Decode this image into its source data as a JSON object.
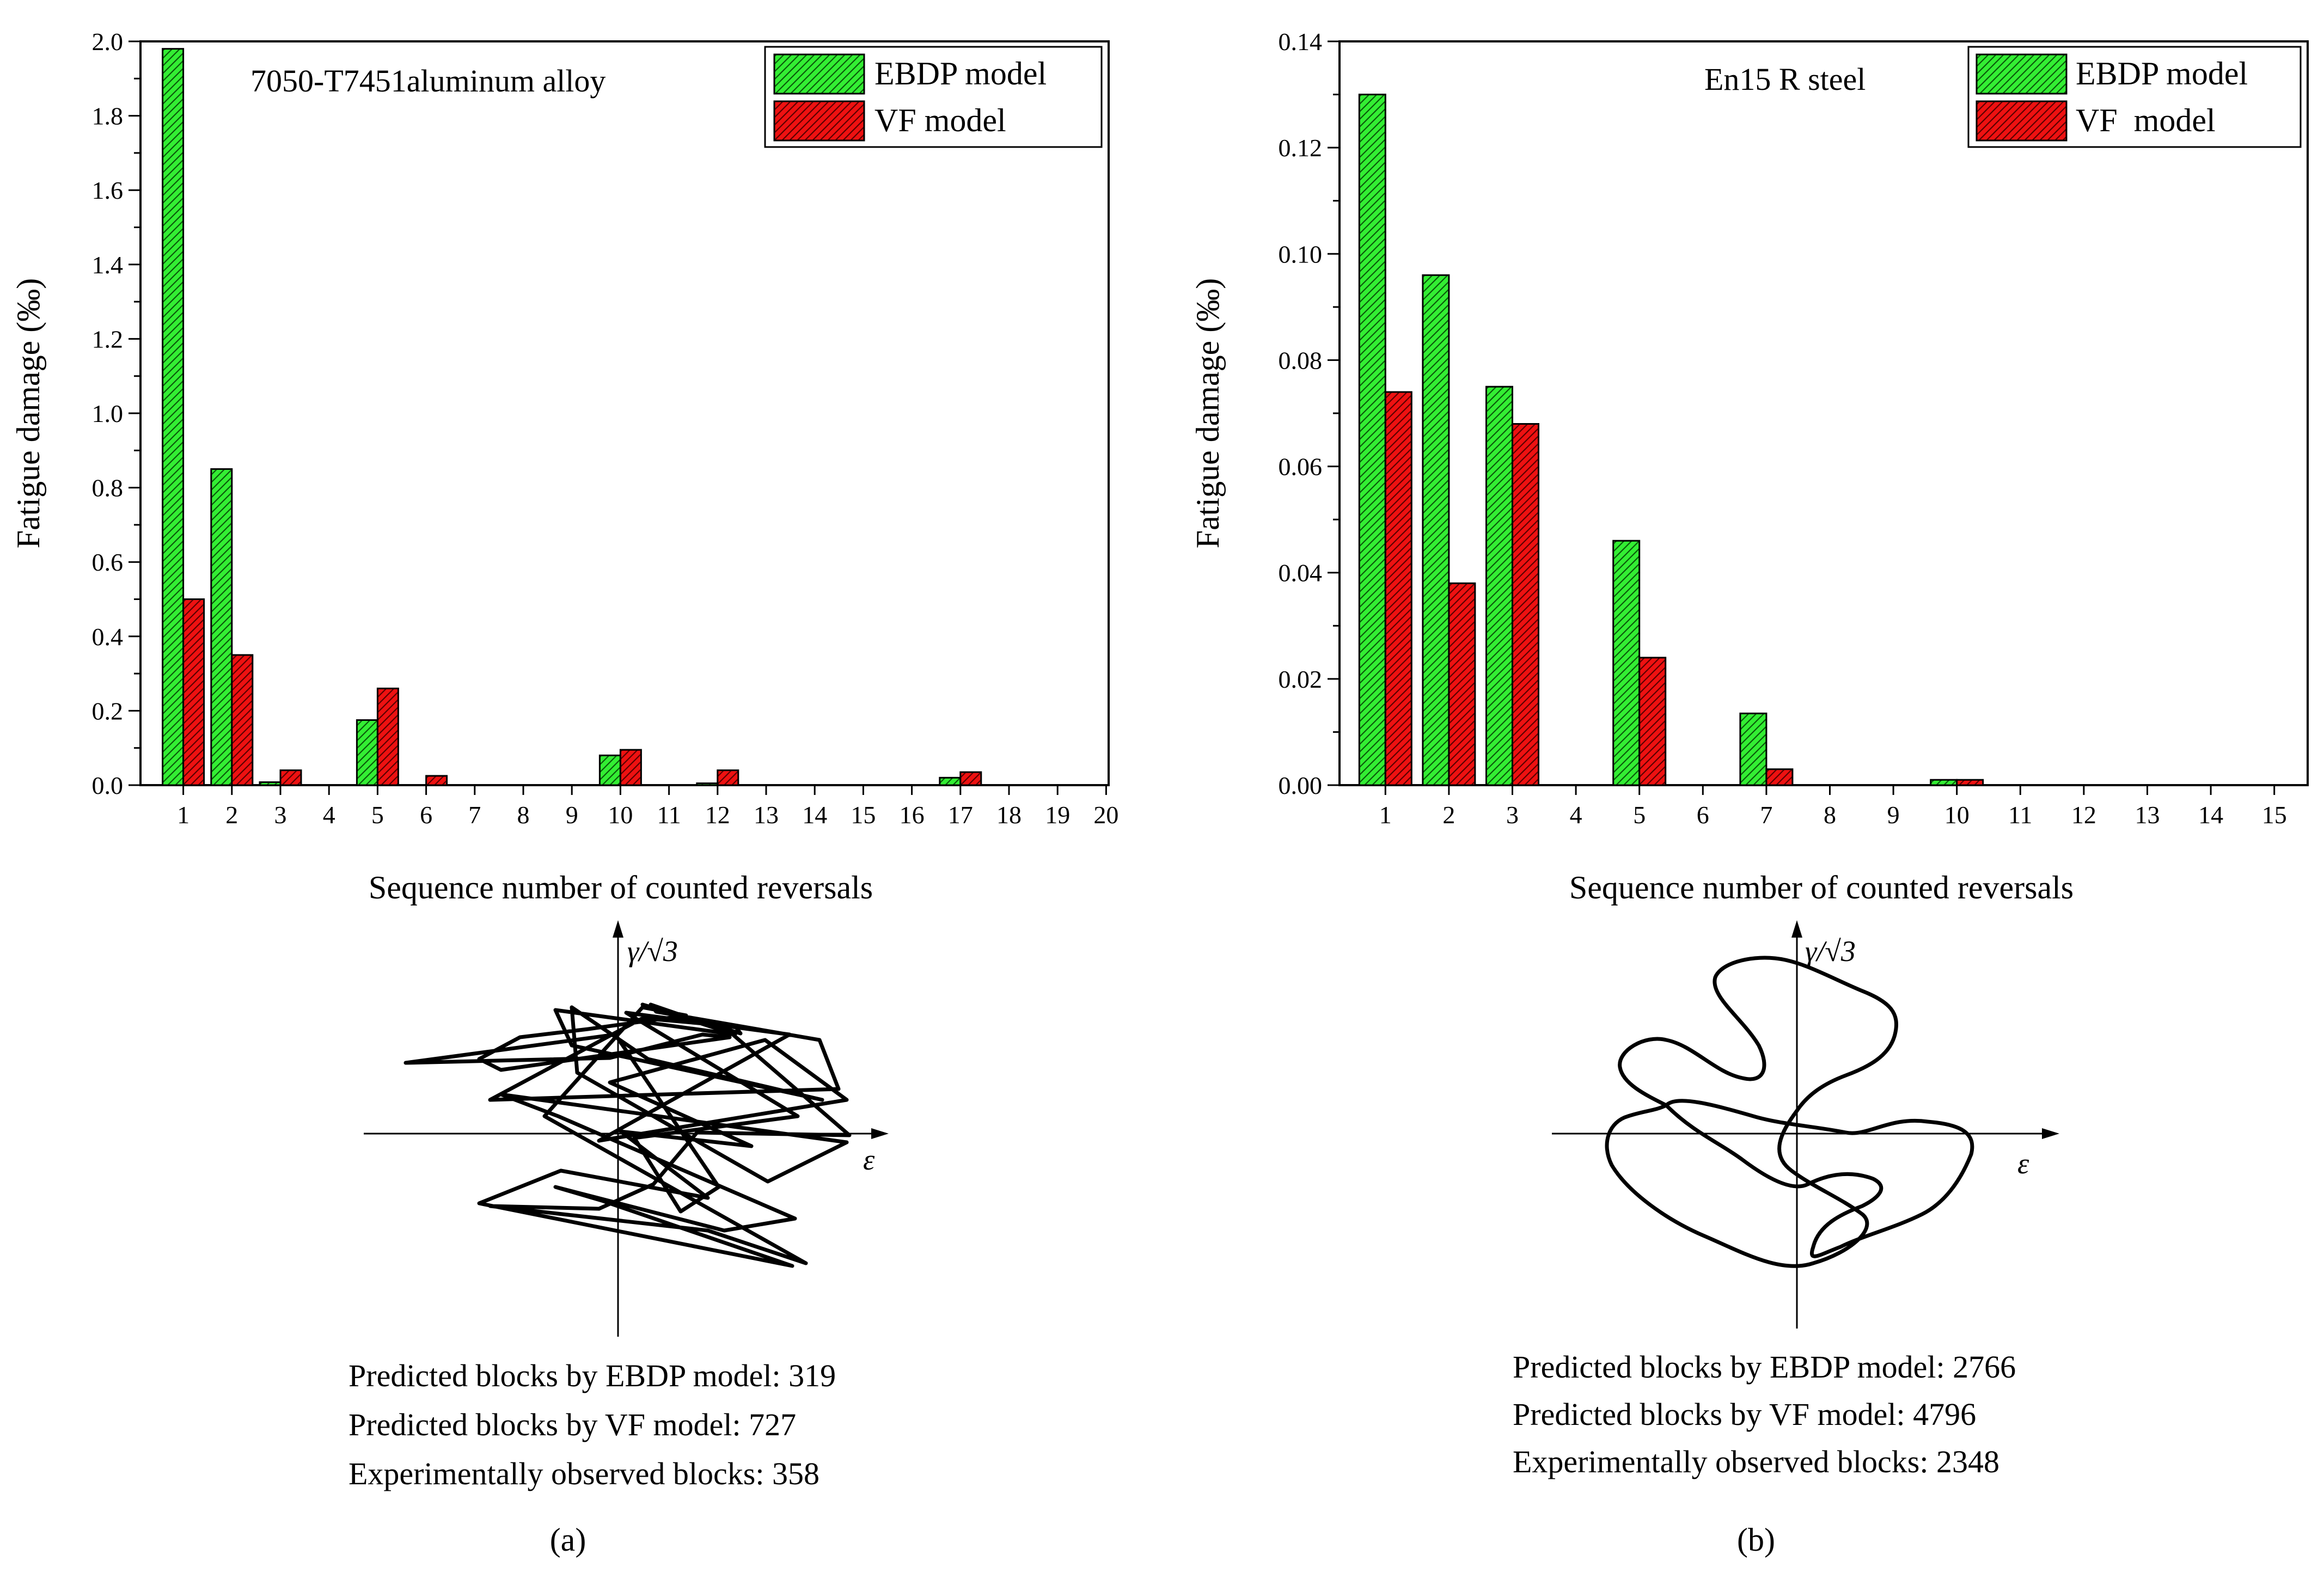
{
  "colors": {
    "ebdp": "#33ee33",
    "vf": "#ee1111",
    "axis": "#000000",
    "background": "#ffffff"
  },
  "chart_data": [
    {
      "type": "bar",
      "panel": "(a)",
      "material": "7050-T7451aluminum alloy",
      "xlabel": "Sequence number of counted reversals",
      "ylabel": "Fatigue damage (‰)",
      "ylim": [
        0,
        2.0
      ],
      "yticks": [
        "0.0",
        "0.2",
        "0.4",
        "0.6",
        "0.8",
        "1.0",
        "1.2",
        "1.4",
        "1.6",
        "1.8",
        "2.0"
      ],
      "categories": [
        "1",
        "2",
        "3",
        "4",
        "5",
        "6",
        "7",
        "8",
        "9",
        "10",
        "11",
        "12",
        "13",
        "14",
        "15",
        "16",
        "17",
        "18",
        "19",
        "20"
      ],
      "series": [
        {
          "name": "EBDP model",
          "values": [
            1.98,
            0.85,
            0.008,
            0,
            0.175,
            0,
            0,
            0,
            0,
            0.08,
            0,
            0.005,
            0,
            0,
            0,
            0,
            0.02,
            0,
            0,
            0
          ]
        },
        {
          "name": "VF model",
          "values": [
            0.5,
            0.35,
            0.04,
            0,
            0.26,
            0.025,
            0,
            0,
            0,
            0.095,
            0,
            0.04,
            0,
            0,
            0,
            0,
            0.035,
            0,
            0,
            0
          ]
        }
      ],
      "legend": [
        "EBDP model",
        "VF model"
      ],
      "legend_position": "top-right",
      "axis_symbols": {
        "y": "γ/√3",
        "x": "ε"
      },
      "predictions": [
        "Predicted blocks by EBDP model: 319",
        "Predicted blocks by VF model: 727",
        "Experimentally observed blocks: 358"
      ]
    },
    {
      "type": "bar",
      "panel": "(b)",
      "material": "En15 R steel",
      "xlabel": "Sequence number of counted reversals",
      "ylabel": "Fatigue damage (‰)",
      "ylim": [
        0,
        0.14
      ],
      "yticks": [
        "0.00",
        "0.02",
        "0.04",
        "0.06",
        "0.08",
        "0.10",
        "0.12",
        "0.14"
      ],
      "categories": [
        "1",
        "2",
        "3",
        "4",
        "5",
        "6",
        "7",
        "8",
        "9",
        "10",
        "11",
        "12",
        "13",
        "14",
        "15"
      ],
      "series": [
        {
          "name": "EBDP model",
          "values": [
            0.13,
            0.096,
            0.075,
            0,
            0.046,
            0,
            0.0135,
            0,
            0,
            0.001,
            0,
            0,
            0,
            0,
            0
          ]
        },
        {
          "name": "VF model",
          "values": [
            0.074,
            0.038,
            0.068,
            0,
            0.024,
            0,
            0.003,
            0,
            0,
            0.001,
            0,
            0,
            0,
            0,
            0
          ]
        }
      ],
      "legend": [
        "EBDP model",
        "VF  model"
      ],
      "legend_position": "top-right",
      "axis_symbols": {
        "y": "γ/√3",
        "x": "ε"
      },
      "predictions": [
        "Predicted blocks by EBDP model: 2766",
        "Predicted blocks by VF model: 4796",
        "Experimentally observed blocks: 2348"
      ]
    }
  ]
}
